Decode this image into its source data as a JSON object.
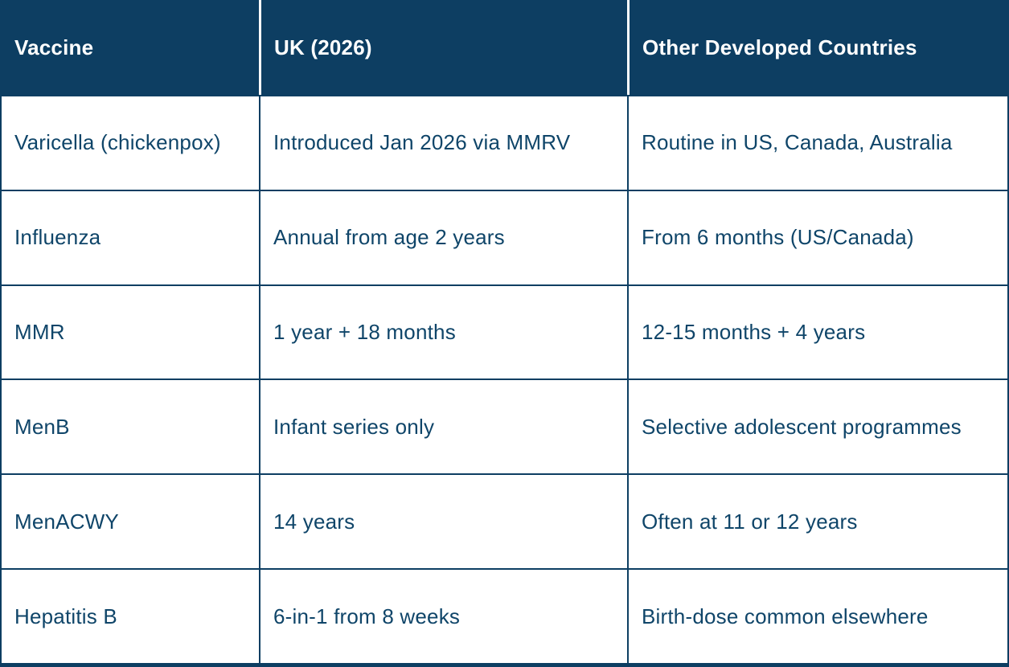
{
  "colors": {
    "header_bg": "#0d3e62",
    "header_text": "#ffffff",
    "body_bg": "#ffffff",
    "body_text": "#0f4569",
    "border": "#0d3e62",
    "header_divider": "#ffffff"
  },
  "table": {
    "columns": [
      "Vaccine",
      "UK (2026)",
      "Other Developed Countries"
    ],
    "rows": [
      [
        "Varicella (chickenpox)",
        "Introduced Jan 2026 via MMRV",
        "Routine in US, Canada, Australia"
      ],
      [
        "Influenza",
        "Annual from age 2 years",
        "From 6 months (US/Canada)"
      ],
      [
        "MMR",
        "1 year + 18 months",
        "12-15 months + 4 years"
      ],
      [
        "MenB",
        "Infant series only",
        "Selective adolescent programmes"
      ],
      [
        "MenACWY",
        "14 years",
        "Often at 11 or 12 years"
      ],
      [
        "Hepatitis B",
        "6-in-1 from 8 weeks",
        "Birth-dose common elsewhere"
      ]
    ]
  }
}
